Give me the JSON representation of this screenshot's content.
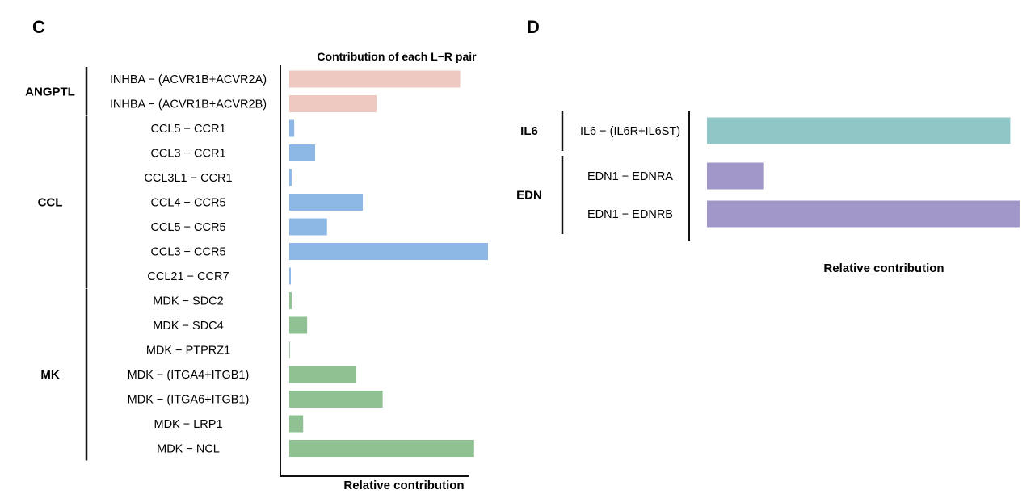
{
  "chart_data": [
    {
      "type": "bar",
      "orientation": "horizontal",
      "panel": "C",
      "title": "Contribution of each L−R pair",
      "xlabel": "Relative contribution",
      "xlim": [
        0,
        1
      ],
      "groups": [
        {
          "name": "ANGPTL",
          "color": "#eec9c2",
          "categories": [
            "INHBA − (ACVR1B+ACVR2A)",
            "INHBA − (ACVR1B+ACVR2B)"
          ],
          "values": [
            0.86,
            0.44
          ]
        },
        {
          "name": "CCL",
          "color": "#8db8e6",
          "categories": [
            "CCL5 − CCR1",
            "CCL3 − CCR1",
            "CCL3L1 − CCR1",
            "CCL4 − CCR5",
            "CCL5 − CCR5",
            "CCL3 − CCR5",
            "CCL21 − CCR7"
          ],
          "values": [
            0.025,
            0.13,
            0.012,
            0.37,
            0.19,
            1.0,
            0.008
          ]
        },
        {
          "name": "MK",
          "color": "#8fc193",
          "categories": [
            "MDK − SDC2",
            "MDK − SDC4",
            "MDK − PTPRZ1",
            "MDK − (ITGA4+ITGB1)",
            "MDK − (ITGA6+ITGB1)",
            "MDK − LRP1",
            "MDK − NCL"
          ],
          "values": [
            0.012,
            0.09,
            0.002,
            0.335,
            0.47,
            0.07,
            0.93
          ]
        }
      ]
    },
    {
      "type": "bar",
      "orientation": "horizontal",
      "panel": "D",
      "title": "",
      "xlabel": "Relative contribution",
      "xlim": [
        0,
        1
      ],
      "groups": [
        {
          "name": "IL6",
          "color": "#8fc7c6",
          "categories": [
            "IL6 − (IL6R+IL6ST)"
          ],
          "values": [
            0.97
          ]
        },
        {
          "name": "EDN",
          "color": "#a197c8",
          "categories": [
            "EDN1 − EDNRA",
            "EDN1 − EDNRB"
          ],
          "values": [
            0.18,
            1.0
          ]
        }
      ]
    }
  ]
}
